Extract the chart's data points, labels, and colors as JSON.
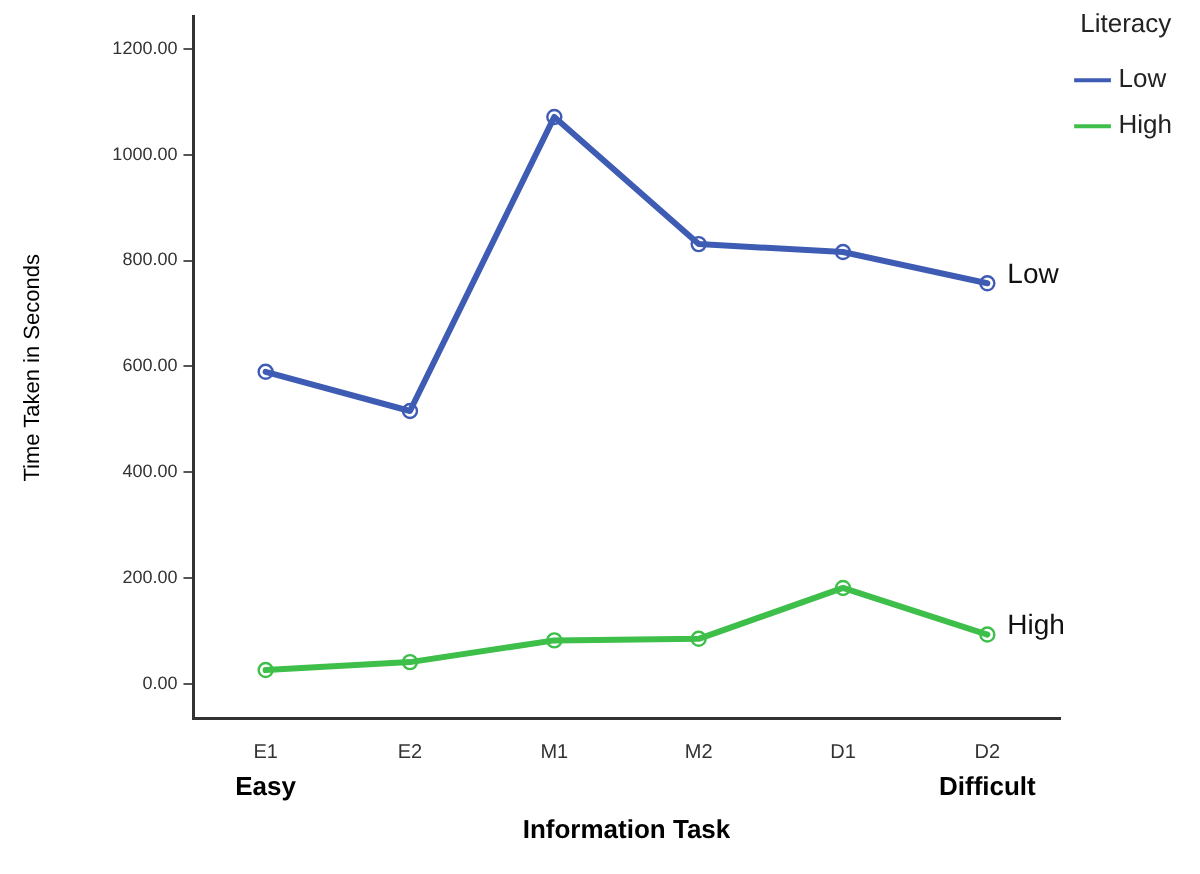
{
  "chart_data": {
    "type": "line",
    "xlabel": "Information Task",
    "ylabel": "Time Taken in Seconds",
    "legend_title": "Literacy",
    "legend": "top right",
    "marker": "circle",
    "line_style": "solid",
    "grid": false,
    "categories": [
      "E1",
      "E2",
      "M1",
      "M2",
      "D1",
      "D2"
    ],
    "series": [
      {
        "name": "Low",
        "color": "#3f5cb4",
        "values": [
          590,
          516,
          1071,
          831,
          816,
          757
        ]
      },
      {
        "name": "High",
        "color": "#3dbf4a",
        "values": [
          27,
          42,
          83,
          86,
          182,
          94
        ]
      }
    ],
    "ylim": [
      -65,
      1260
    ],
    "yticks": [
      {
        "value": 0,
        "label": "0.00"
      },
      {
        "value": 200,
        "label": "200.00"
      },
      {
        "value": 400,
        "label": "400.00"
      },
      {
        "value": 600,
        "label": "600.00"
      },
      {
        "value": 800,
        "label": "800.00"
      },
      {
        "value": 1000,
        "label": "1000.00"
      },
      {
        "value": 1200,
        "label": "1200.00"
      }
    ],
    "annotations": [
      {
        "text": "Low",
        "x": "D2",
        "y": 757
      },
      {
        "text": "High",
        "x": "D2",
        "y": 94
      },
      "Easy",
      "Difficult"
    ]
  }
}
